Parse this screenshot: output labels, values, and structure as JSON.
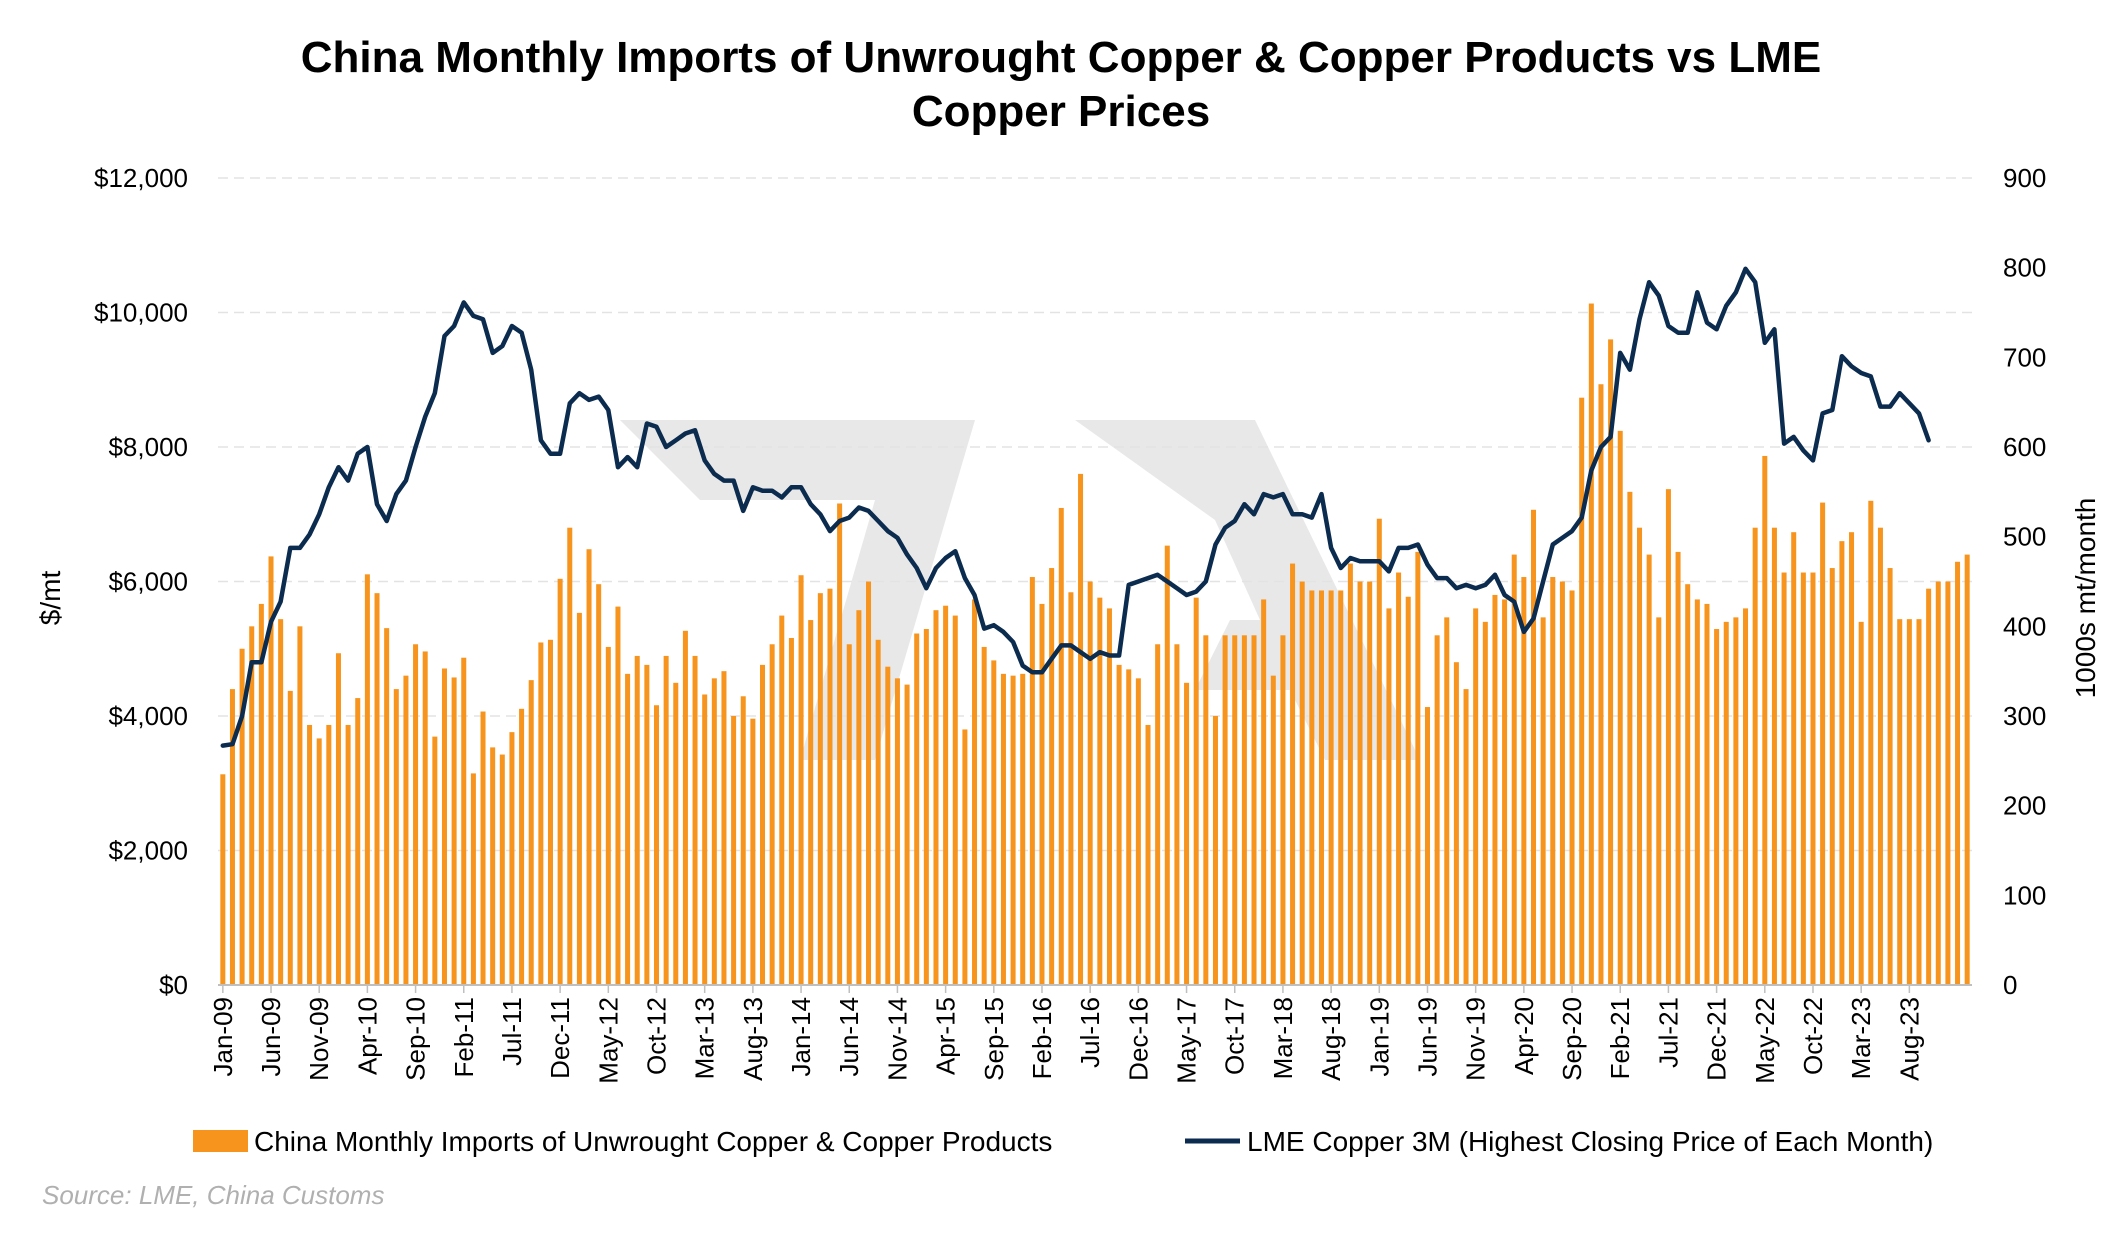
{
  "colors": {
    "bar": "#f7941d",
    "line": "#0b2b4f",
    "grid": "#e3e3e3",
    "source": "#b0b0b0",
    "watermark": "#d9d9d9"
  },
  "chart_data": {
    "type": "bar+line",
    "title_line1": "China Monthly Imports of Unwrought Copper & Copper Products vs LME",
    "title_line2": "Copper Prices",
    "ylabel_left": "$/mt",
    "ylabel_right": "1000s mt/month",
    "y_left_ticks": [
      "$0",
      "$2,000",
      "$4,000",
      "$6,000",
      "$8,000",
      "$10,000",
      "$12,000"
    ],
    "y_left_range": [
      0,
      12000
    ],
    "y_right_ticks": [
      "0",
      "100",
      "200",
      "300",
      "400",
      "500",
      "600",
      "700",
      "800",
      "900"
    ],
    "y_right_range": [
      0,
      900
    ],
    "x_tick_labels": [
      "Jan-09",
      "Jun-09",
      "Nov-09",
      "Apr-10",
      "Sep-10",
      "Feb-11",
      "Jul-11",
      "Dec-11",
      "May-12",
      "Oct-12",
      "Mar-13",
      "Aug-13",
      "Jan-14",
      "Jun-14",
      "Nov-14",
      "Apr-15",
      "Sep-15",
      "Feb-16",
      "Jul-16",
      "Dec-16",
      "May-17",
      "Oct-17",
      "Mar-18",
      "Aug-18",
      "Jan-19",
      "Jun-19",
      "Nov-19",
      "Apr-20",
      "Sep-20",
      "Feb-21",
      "Jul-21",
      "Dec-21",
      "May-22",
      "Oct-22",
      "Mar-23",
      "Aug-23"
    ],
    "x_start": "Jan-09",
    "gridlines": true,
    "legend_position": "bottom",
    "series": [
      {
        "name": "China Monthly Imports of Unwrought Copper & Copper Products",
        "type": "bar",
        "axis": "right",
        "values": [
          235,
          330,
          375,
          400,
          425,
          478,
          408,
          328,
          400,
          290,
          275,
          290,
          370,
          290,
          320,
          458,
          437,
          398,
          330,
          345,
          380,
          372,
          277,
          353,
          343,
          365,
          236,
          305,
          265,
          257,
          282,
          308,
          340,
          382,
          385,
          453,
          510,
          415,
          486,
          447,
          377,
          422,
          347,
          367,
          357,
          312,
          367,
          337,
          395,
          367,
          324,
          342,
          350,
          300,
          322,
          297,
          357,
          380,
          412,
          387,
          457,
          407,
          437,
          442,
          537,
          380,
          418,
          450,
          385,
          355,
          342,
          335,
          392,
          397,
          418,
          423,
          412,
          285,
          430,
          377,
          362,
          347,
          345,
          347,
          455,
          425,
          465,
          532,
          438,
          570,
          450,
          432,
          420,
          357,
          352,
          342,
          290,
          380,
          490,
          380,
          337,
          432,
          390,
          300,
          390,
          390,
          390,
          390,
          430,
          345,
          390,
          470,
          450,
          440,
          440,
          440,
          440,
          470,
          450,
          450,
          520,
          420,
          460,
          433,
          483,
          310,
          390,
          410,
          360,
          330,
          420,
          405,
          435,
          430,
          480,
          455,
          530,
          410,
          455,
          450,
          440,
          655,
          760,
          670,
          720,
          618,
          550,
          510,
          480,
          410,
          553,
          483,
          447,
          430,
          425,
          397,
          405,
          410,
          420,
          510,
          590,
          510,
          460,
          505,
          460,
          460,
          538,
          465,
          495,
          505,
          405,
          540,
          510,
          465,
          408,
          408,
          408,
          442,
          450,
          450,
          472,
          480
        ]
      },
      {
        "name": "LME Copper 3M (Highest Closing Price of Each Month)",
        "type": "line",
        "axis": "left",
        "values": [
          3560,
          3580,
          4000,
          4800,
          4800,
          5400,
          5700,
          6500,
          6500,
          6700,
          7000,
          7400,
          7700,
          7500,
          7900,
          8000,
          7150,
          6900,
          7300,
          7500,
          8000,
          8450,
          8800,
          9650,
          9800,
          10150,
          9950,
          9900,
          9400,
          9500,
          9800,
          9700,
          9150,
          8100,
          7900,
          7900,
          8650,
          8800,
          8700,
          8750,
          8550,
          7700,
          7850,
          7700,
          8350,
          8300,
          8000,
          8100,
          8200,
          8250,
          7800,
          7600,
          7500,
          7500,
          7050,
          7400,
          7350,
          7350,
          7250,
          7400,
          7400,
          7150,
          7000,
          6750,
          6900,
          6950,
          7100,
          7050,
          6900,
          6750,
          6650,
          6400,
          6200,
          5900,
          6200,
          6350,
          6450,
          6050,
          5800,
          5300,
          5350,
          5250,
          5100,
          4750,
          4650,
          4650,
          4850,
          5050,
          5050,
          4950,
          4850,
          4950,
          4900,
          4900,
          5950,
          6000,
          6050,
          6100,
          6000,
          5900,
          5800,
          5850,
          6000,
          6550,
          6800,
          6900,
          7150,
          7000,
          7300,
          7250,
          7300,
          7000,
          7000,
          6950,
          7300,
          6500,
          6200,
          6350,
          6300,
          6300,
          6300,
          6150,
          6500,
          6500,
          6550,
          6250,
          6050,
          6050,
          5900,
          5950,
          5900,
          5950,
          6100,
          5800,
          5700,
          5250,
          5450,
          6000,
          6550,
          6650,
          6750,
          6950,
          7650,
          8000,
          8150,
          9400,
          9150,
          9900,
          10450,
          10250,
          9800,
          9700,
          9700,
          10300,
          9850,
          9750,
          10100,
          10300,
          10650,
          10450,
          9550,
          9750,
          8050,
          8150,
          7950,
          7800,
          8500,
          8550,
          9350,
          9200,
          9100,
          9050,
          8600,
          8600,
          8800,
          8650,
          8500,
          8100
        ]
      }
    ],
    "source": "Source: LME, China Customs"
  }
}
